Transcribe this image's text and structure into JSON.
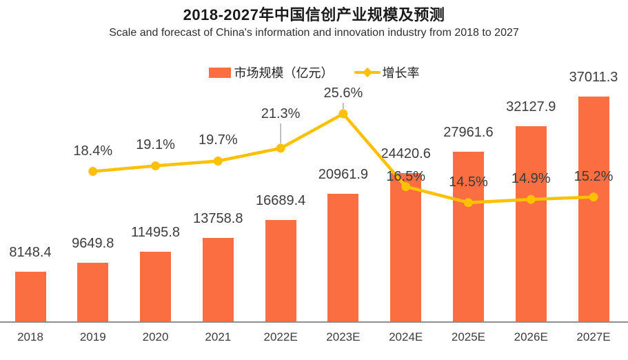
{
  "title": "2018-2027年中国信创产业规模及预测",
  "subtitle": "Scale and forecast of China's information and innovation industry from 2018 to 2027",
  "legend": {
    "bars": "市场规模（亿元）",
    "line": "增长率"
  },
  "colors": {
    "bar": "#FA6E42",
    "line": "#FFC000",
    "label_text": "#3C3C3C",
    "axis": "#8F8F8F",
    "leader": "#AAAAAA"
  },
  "chart_data": {
    "type": "bar",
    "categories": [
      "2018",
      "2019",
      "2020",
      "2021",
      "2022E",
      "2023E",
      "2024E",
      "2025E",
      "2026E",
      "2027E"
    ],
    "series": [
      {
        "name": "市场规模（亿元）",
        "type": "bar",
        "values": [
          8148.4,
          9649.8,
          11495.8,
          13758.8,
          16689.4,
          20961.9,
          24420.6,
          27961.6,
          32127.9,
          37011.3
        ],
        "labels": [
          "8148.4",
          "9649.8",
          "11495.8",
          "13758.8",
          "16689.4",
          "20961.9",
          "24420.6",
          "27961.6",
          "32127.9",
          "37011.3"
        ]
      },
      {
        "name": "增长率",
        "type": "line",
        "unit": "%",
        "values": [
          null,
          18.4,
          19.1,
          19.7,
          21.3,
          25.6,
          16.5,
          14.5,
          14.9,
          15.2
        ],
        "labels": [
          null,
          "18.4%",
          "19.1%",
          "19.7%",
          "21.3%",
          "25.6%",
          "16.5%",
          "14.5%",
          "14.9%",
          "15.2%"
        ]
      }
    ],
    "ylabel": "",
    "xlabel": "",
    "ylim": [
      0,
      40000
    ],
    "y2lim": [
      0,
      28
    ],
    "grid": false,
    "legend_position": "top-center",
    "label_layout_hints": {
      "growth_label_dy_default": -40,
      "growth_label_dy_overrides": {
        "2022E": -60,
        "2024E": -25
      },
      "leader_line_categories": [
        "2022E",
        "2023E"
      ]
    }
  }
}
